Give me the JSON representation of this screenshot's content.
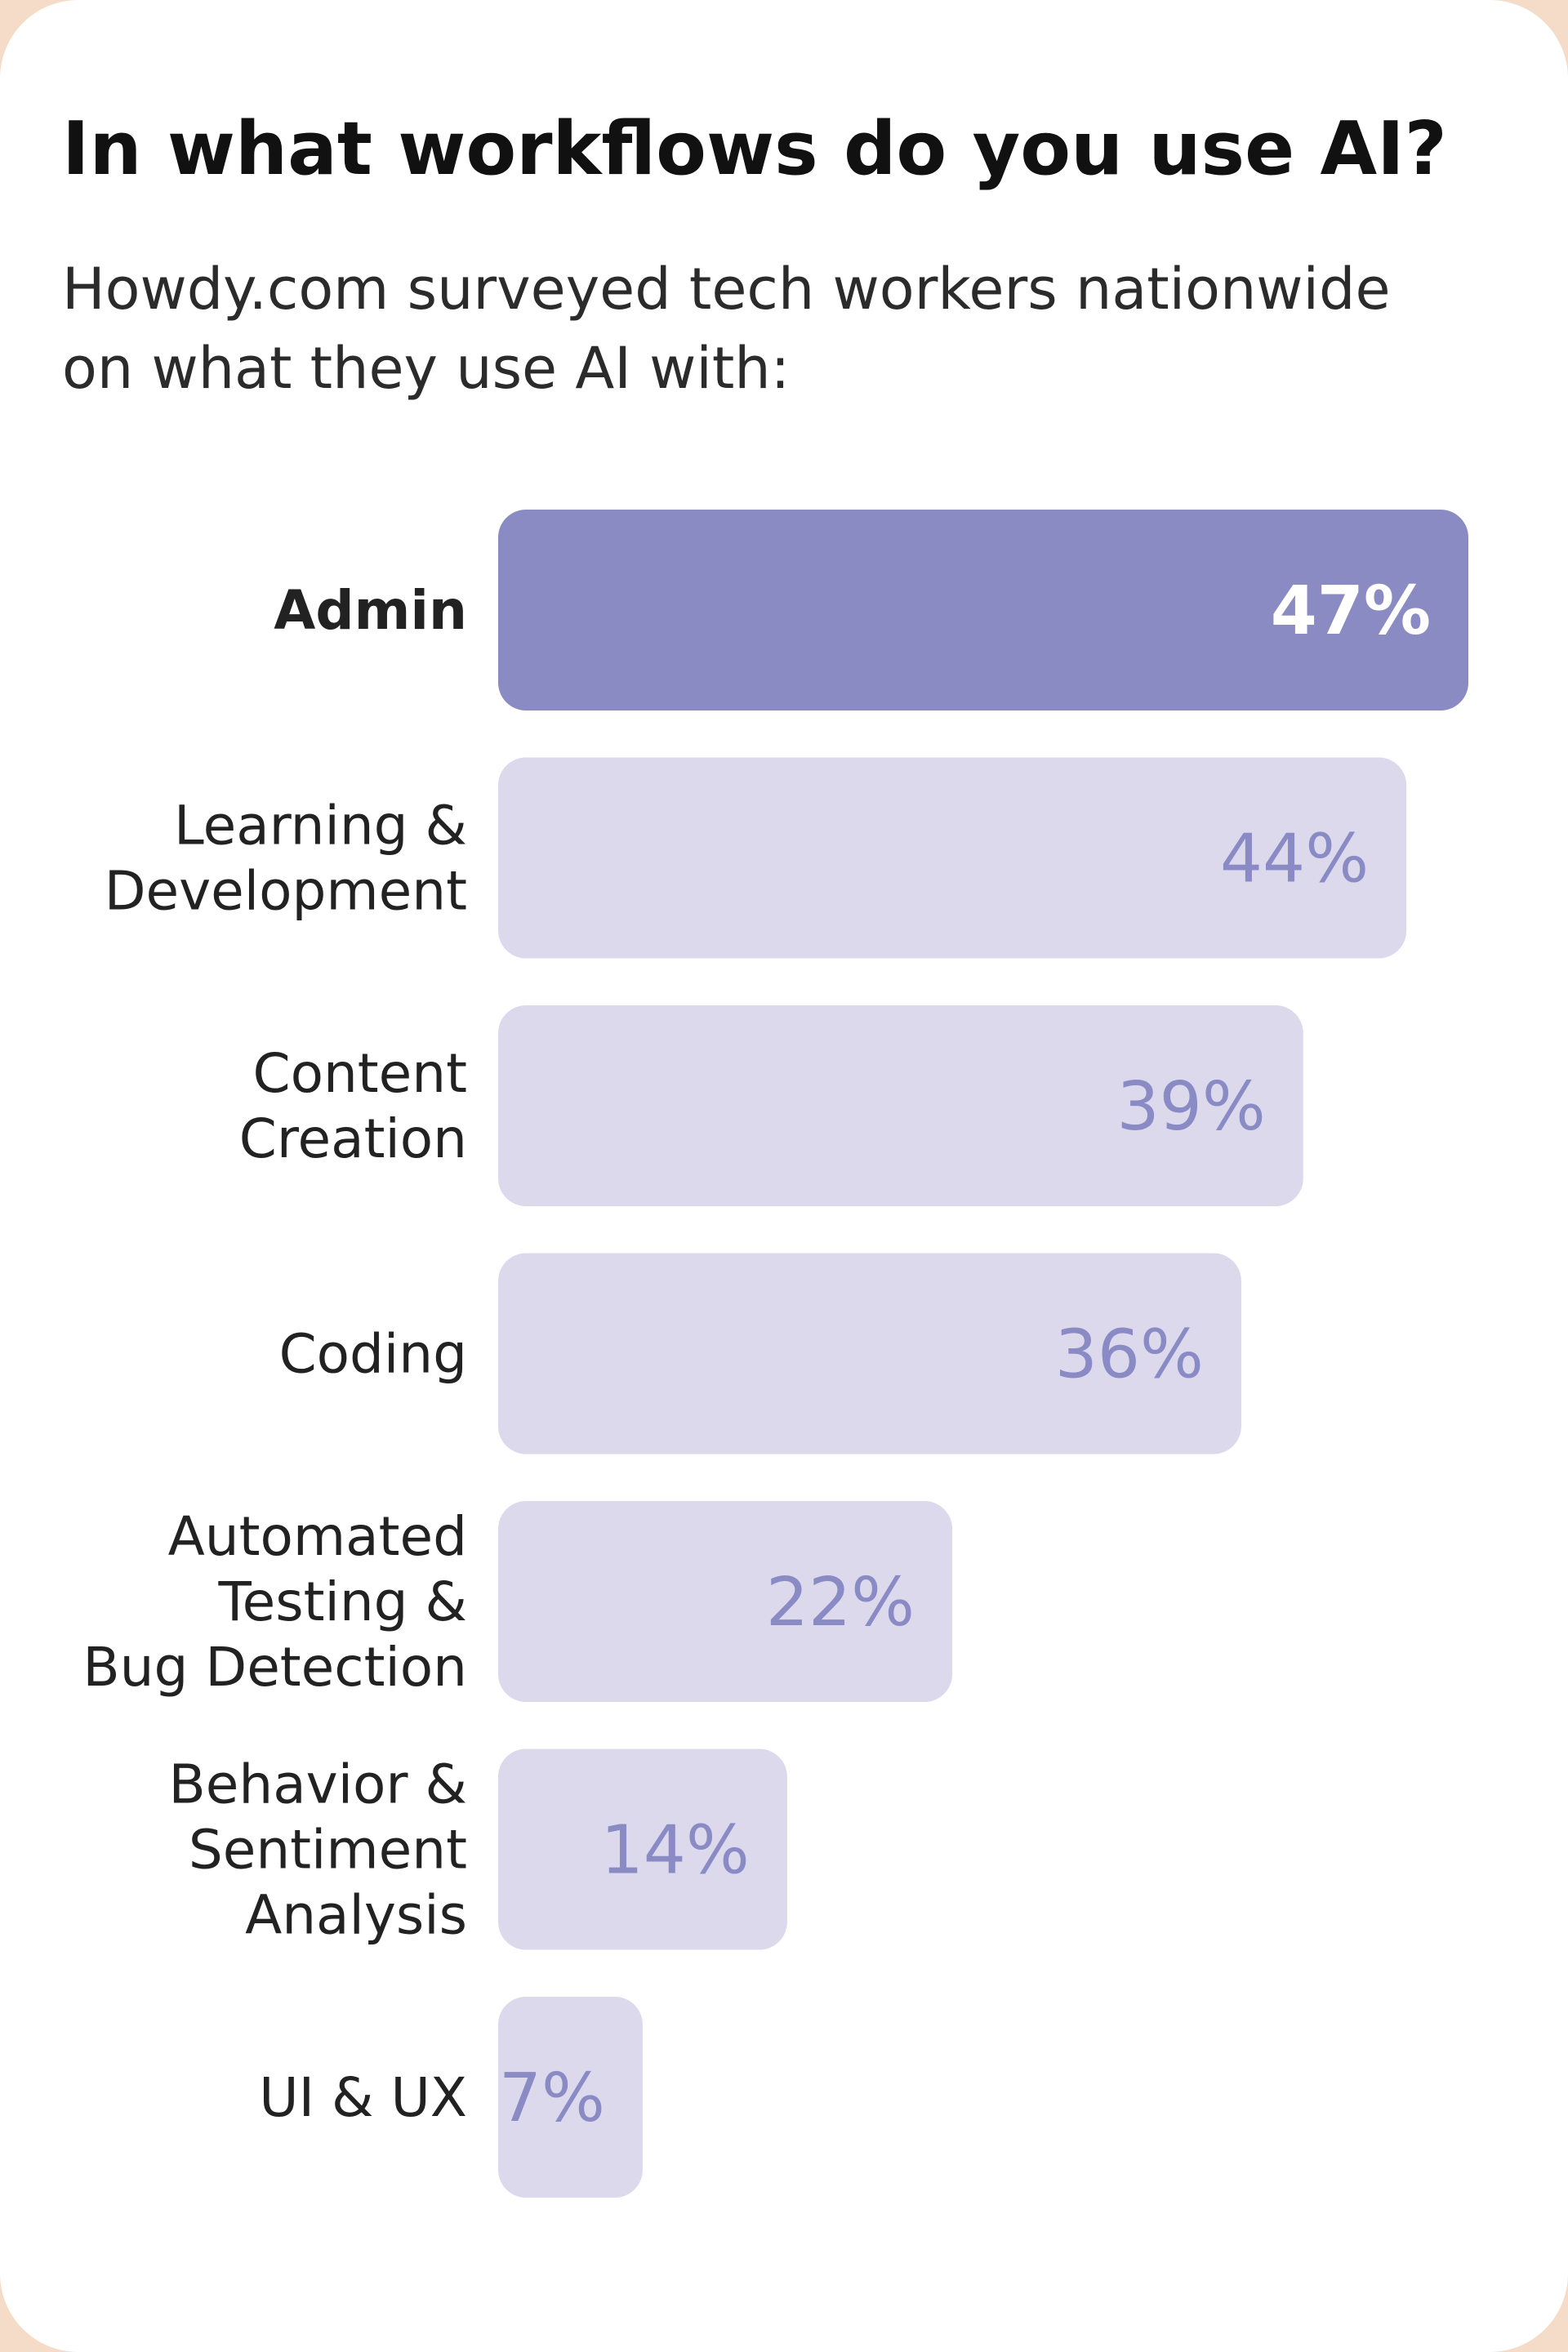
{
  "header": {
    "title": "In what workflows do you use AI?",
    "subtitle": "Howdy.com surveyed tech workers nationwide on what they use AI with:"
  },
  "colors": {
    "highlight_bar": "#8b8bc3",
    "bar": "#dcd9ed",
    "value_text": "#8a8ac4",
    "highlight_value_text": "#ffffff",
    "page_border": "#f4dcc8"
  },
  "chart_data": {
    "type": "bar",
    "orientation": "horizontal",
    "title": "In what workflows do you use AI?",
    "subtitle": "Howdy.com surveyed tech workers nationwide on what they use AI with:",
    "categories": [
      [
        "Admin"
      ],
      [
        "Learning &",
        "Development"
      ],
      [
        "Content",
        "Creation"
      ],
      [
        "Coding"
      ],
      [
        "Automated",
        "Testing &",
        "Bug Detection"
      ],
      [
        "Behavior &",
        "Sentiment",
        "Analysis"
      ],
      [
        "UI & UX"
      ]
    ],
    "values": [
      47,
      44,
      39,
      36,
      22,
      14,
      7
    ],
    "value_labels": [
      "47%",
      "44%",
      "39%",
      "36%",
      "22%",
      "14%",
      "7%"
    ],
    "unit": "%",
    "highlight_index": 0,
    "xlim": [
      0,
      47
    ],
    "grid": false,
    "legend": "none"
  }
}
